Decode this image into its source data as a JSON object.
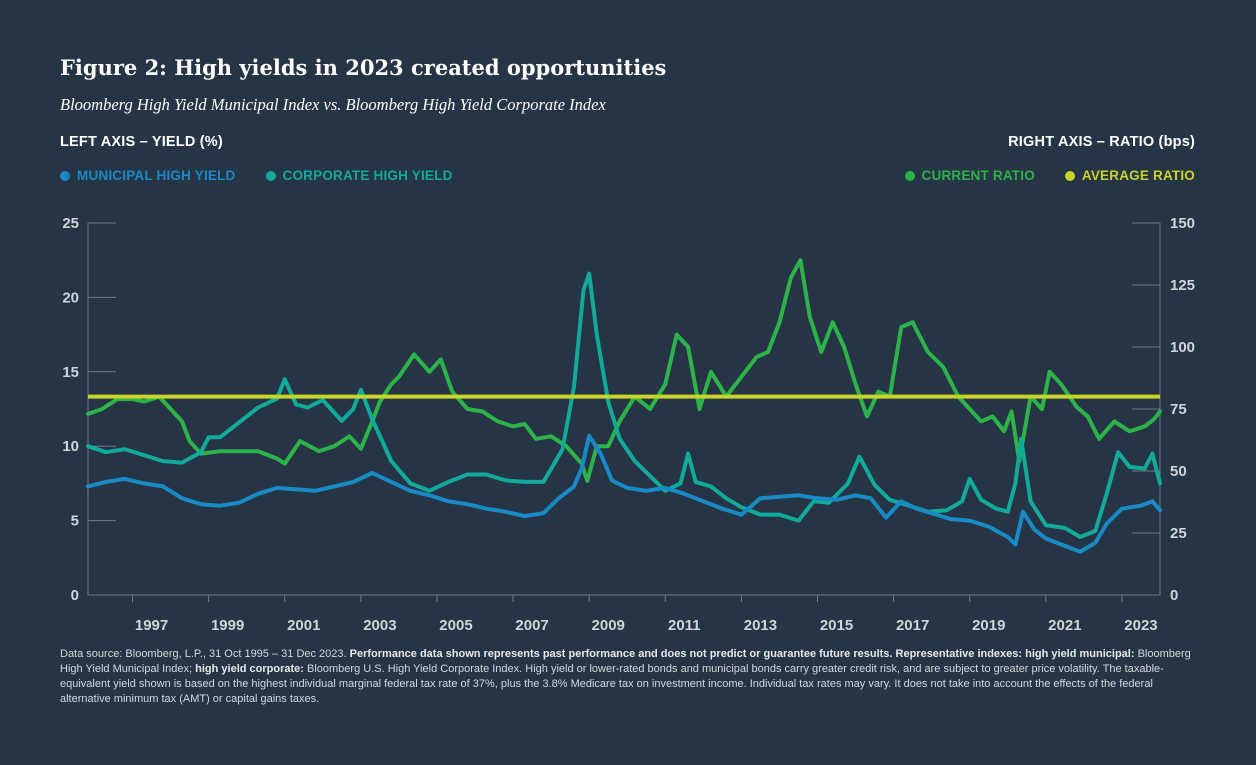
{
  "colors": {
    "background": "#253545",
    "municipal": "#1a8ac6",
    "corporate": "#12aa99",
    "current_ratio": "#2db34a",
    "average_ratio": "#c8d42a",
    "axis": "#6d7c89"
  },
  "header": {
    "title": "Figure 2: High yields in 2023 created opportunities",
    "subtitle": "Bloomberg High Yield Municipal Index vs. Bloomberg High Yield Corporate Index",
    "left_axis_title": "LEFT AXIS – YIELD (%)",
    "right_axis_title": "RIGHT AXIS – RATIO (bps)"
  },
  "legend": {
    "municipal": "MUNICIPAL HIGH YIELD",
    "corporate": "CORPORATE HIGH YIELD",
    "current_ratio": "CURRENT RATIO",
    "average_ratio": "AVERAGE RATIO"
  },
  "chart_data": {
    "type": "line",
    "title": "Figure 2: High yields in 2023 created opportunities",
    "xlim": [
      1995.83,
      2024.0
    ],
    "ylim_left": [
      0,
      25
    ],
    "ylim_right": [
      0,
      150
    ],
    "y_ticks_left": [
      "0",
      "5",
      "10",
      "15",
      "20",
      "25"
    ],
    "y_ticks_right": [
      "0",
      "25",
      "50",
      "75",
      "100",
      "125",
      "150"
    ],
    "x_ticks": [
      "1997",
      "1999",
      "2001",
      "2003",
      "2005",
      "2007",
      "2009",
      "2011",
      "2013",
      "2015",
      "2017",
      "2019",
      "2021",
      "2023"
    ],
    "series": [
      {
        "name": "MUNICIPAL HIGH YIELD",
        "axis": "left",
        "x": [
          1995.83,
          1996.3,
          1996.8,
          1997.3,
          1997.8,
          1998.3,
          1998.8,
          1999.3,
          1999.8,
          2000.3,
          2000.8,
          2001.3,
          2001.8,
          2002.3,
          2002.8,
          2003.3,
          2003.8,
          2004.3,
          2004.8,
          2005.3,
          2005.8,
          2006.3,
          2006.8,
          2007.3,
          2007.8,
          2008.2,
          2008.6,
          2008.8,
          2009.0,
          2009.3,
          2009.6,
          2010.0,
          2010.5,
          2011.0,
          2011.5,
          2012.0,
          2012.5,
          2013.0,
          2013.5,
          2014.0,
          2014.5,
          2015.0,
          2015.5,
          2016.0,
          2016.4,
          2016.8,
          2017.2,
          2017.6,
          2018.0,
          2018.5,
          2019.0,
          2019.5,
          2020.0,
          2020.2,
          2020.4,
          2020.7,
          2021.0,
          2021.5,
          2021.9,
          2022.3,
          2022.6,
          2023.0,
          2023.5,
          2023.8,
          2024.0
        ],
        "values": [
          7.3,
          7.6,
          7.8,
          7.5,
          7.3,
          6.5,
          6.1,
          6.0,
          6.2,
          6.8,
          7.2,
          7.1,
          7.0,
          7.3,
          7.6,
          8.2,
          7.6,
          7.0,
          6.7,
          6.3,
          6.1,
          5.8,
          5.6,
          5.3,
          5.5,
          6.5,
          7.3,
          8.5,
          10.7,
          9.5,
          7.7,
          7.2,
          7.0,
          7.2,
          6.8,
          6.3,
          5.8,
          5.4,
          6.5,
          6.6,
          6.7,
          6.5,
          6.4,
          6.7,
          6.5,
          5.2,
          6.3,
          5.8,
          5.5,
          5.1,
          5.0,
          4.6,
          3.9,
          3.4,
          5.6,
          4.4,
          3.8,
          3.3,
          2.9,
          3.5,
          4.8,
          5.8,
          6.0,
          6.3,
          5.7
        ]
      },
      {
        "name": "CORPORATE HIGH YIELD",
        "axis": "left",
        "x": [
          1995.83,
          1996.3,
          1996.8,
          1997.3,
          1997.8,
          1998.3,
          1998.8,
          1999.0,
          1999.3,
          1999.8,
          2000.3,
          2000.8,
          2001.0,
          2001.3,
          2001.6,
          2002.0,
          2002.5,
          2002.8,
          2003.0,
          2003.3,
          2003.8,
          2004.3,
          2004.8,
          2005.3,
          2005.8,
          2006.3,
          2006.8,
          2007.3,
          2007.8,
          2008.3,
          2008.6,
          2008.85,
          2009.0,
          2009.2,
          2009.5,
          2009.8,
          2010.2,
          2010.6,
          2011.0,
          2011.4,
          2011.6,
          2011.8,
          2012.2,
          2012.6,
          2013.0,
          2013.5,
          2014.0,
          2014.5,
          2014.9,
          2015.3,
          2015.8,
          2016.1,
          2016.5,
          2016.9,
          2017.4,
          2017.9,
          2018.4,
          2018.8,
          2019.0,
          2019.3,
          2019.7,
          2020.0,
          2020.2,
          2020.35,
          2020.6,
          2021.0,
          2021.5,
          2021.9,
          2022.3,
          2022.6,
          2022.9,
          2023.2,
          2023.6,
          2023.8,
          2024.0
        ],
        "values": [
          10.0,
          9.6,
          9.8,
          9.4,
          9.0,
          8.9,
          9.6,
          10.6,
          10.6,
          11.6,
          12.6,
          13.2,
          14.5,
          12.8,
          12.6,
          13.1,
          11.7,
          12.5,
          13.8,
          11.8,
          9.0,
          7.5,
          7.0,
          7.6,
          8.1,
          8.1,
          7.7,
          7.6,
          7.6,
          9.8,
          14.0,
          20.5,
          21.6,
          17.5,
          13.0,
          10.5,
          9.0,
          8.0,
          7.0,
          7.5,
          9.5,
          7.6,
          7.3,
          6.5,
          5.9,
          5.4,
          5.4,
          5.0,
          6.3,
          6.2,
          7.5,
          9.3,
          7.4,
          6.4,
          6.0,
          5.6,
          5.7,
          6.3,
          7.8,
          6.4,
          5.8,
          5.6,
          7.5,
          10.5,
          6.3,
          4.7,
          4.5,
          3.9,
          4.3,
          6.8,
          9.6,
          8.6,
          8.5,
          9.5,
          7.5
        ]
      },
      {
        "name": "CURRENT RATIO",
        "axis": "right",
        "x": [
          1995.83,
          1996.2,
          1996.6,
          1997.0,
          1997.3,
          1997.7,
          1998.0,
          1998.3,
          1998.5,
          1998.8,
          1999.3,
          1999.8,
          2000.3,
          2000.8,
          2001.0,
          2001.4,
          2001.9,
          2002.3,
          2002.7,
          2003.0,
          2003.3,
          2003.5,
          2003.8,
          2004.0,
          2004.4,
          2004.8,
          2005.1,
          2005.4,
          2005.8,
          2006.2,
          2006.6,
          2007.0,
          2007.3,
          2007.6,
          2008.0,
          2008.4,
          2008.8,
          2008.95,
          2009.2,
          2009.5,
          2009.8,
          2010.2,
          2010.6,
          2011.0,
          2011.3,
          2011.6,
          2011.9,
          2012.2,
          2012.6,
          2013.0,
          2013.4,
          2013.7,
          2014.0,
          2014.3,
          2014.55,
          2014.8,
          2015.1,
          2015.4,
          2015.7,
          2016.0,
          2016.3,
          2016.6,
          2016.9,
          2017.2,
          2017.5,
          2017.9,
          2018.3,
          2018.7,
          2019.0,
          2019.3,
          2019.6,
          2019.9,
          2020.1,
          2020.3,
          2020.6,
          2020.9,
          2021.1,
          2021.4,
          2021.8,
          2022.1,
          2022.4,
          2022.8,
          2023.2,
          2023.6,
          2023.85,
          2024.0
        ],
        "values": [
          73,
          75,
          79,
          79,
          78,
          80,
          75,
          70,
          62,
          57,
          58,
          58,
          58,
          55,
          53,
          62,
          58,
          60,
          64,
          59,
          70,
          78,
          85,
          88,
          97,
          90,
          95,
          82,
          75,
          74,
          70,
          68,
          69,
          63,
          64,
          60,
          53,
          46,
          60,
          60,
          70,
          80,
          75,
          85,
          105,
          100,
          75,
          90,
          80,
          88,
          96,
          98,
          110,
          128,
          135,
          112,
          98,
          110,
          100,
          85,
          72,
          82,
          80,
          108,
          110,
          98,
          92,
          80,
          75,
          70,
          72,
          66,
          74,
          54,
          80,
          75,
          90,
          85,
          76,
          72,
          63,
          70,
          66,
          68,
          71,
          74
        ]
      }
    ],
    "average_ratio": {
      "name": "AVERAGE RATIO",
      "axis": "right",
      "value": 80
    }
  },
  "footnote": {
    "p1": "Data source: Bloomberg, L.P., 31 Oct 1995 – 31 Dec 2023. ",
    "b1": "Performance data shown represents past performance and does not predict or guarantee future results. Representative indexes: high yield municipal:",
    "p2": " Bloomberg High Yield Municipal Index; ",
    "b2": "high yield corporate:",
    "p3": " Bloomberg U.S. High Yield Corporate Index. High yield or lower-rated bonds and municipal bonds carry greater credit risk, and are subject to greater price volatility. The taxable-equivalent yield shown is based on the highest individual marginal federal tax rate of 37%, plus the 3.8% Medicare tax on investment income. Individual tax rates may vary. It does not take into account the effects of the federal alternative minimum tax (AMT) or capital gains taxes."
  }
}
